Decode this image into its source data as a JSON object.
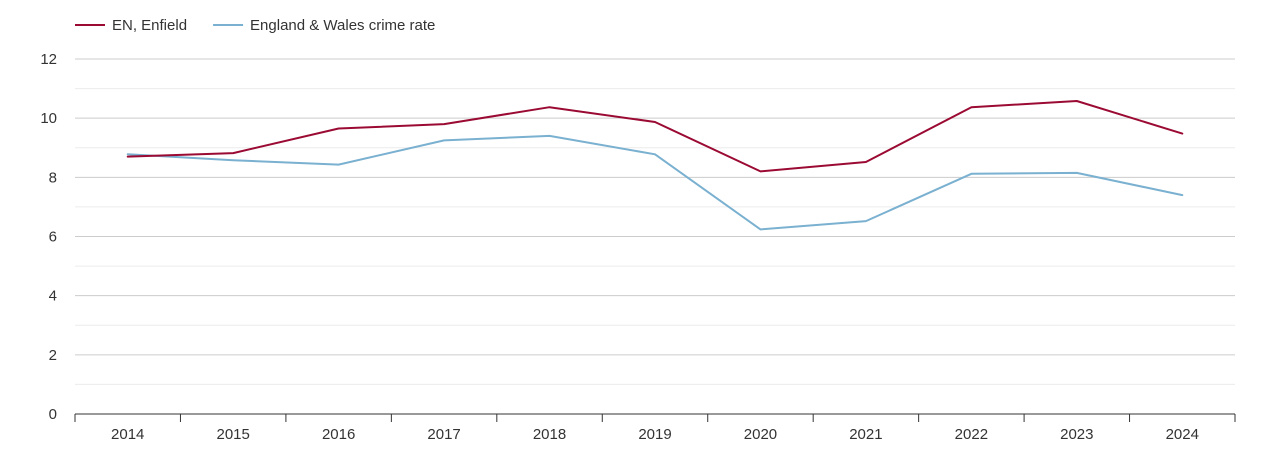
{
  "chart_data": {
    "type": "line",
    "title": "",
    "xlabel": "",
    "ylabel": "",
    "categories": [
      "2014",
      "2015",
      "2016",
      "2017",
      "2018",
      "2019",
      "2020",
      "2021",
      "2022",
      "2023",
      "2024"
    ],
    "ylim": [
      0,
      12
    ],
    "yticks": [
      0,
      2,
      4,
      6,
      8,
      10,
      12
    ],
    "yticks_minor": [
      1,
      3,
      5,
      7,
      9,
      11
    ],
    "grid": true,
    "legend_position": "top-left",
    "series": [
      {
        "name": "EN, Enfield",
        "color": "#9b0a33",
        "values": [
          8.7,
          8.82,
          9.65,
          9.8,
          10.37,
          9.87,
          8.2,
          8.52,
          10.37,
          10.58,
          9.48
        ]
      },
      {
        "name": "England & Wales crime rate",
        "color": "#7ab0d0",
        "values": [
          8.78,
          8.58,
          8.43,
          9.25,
          9.4,
          8.78,
          6.24,
          6.52,
          8.12,
          8.15,
          7.4
        ]
      }
    ]
  }
}
